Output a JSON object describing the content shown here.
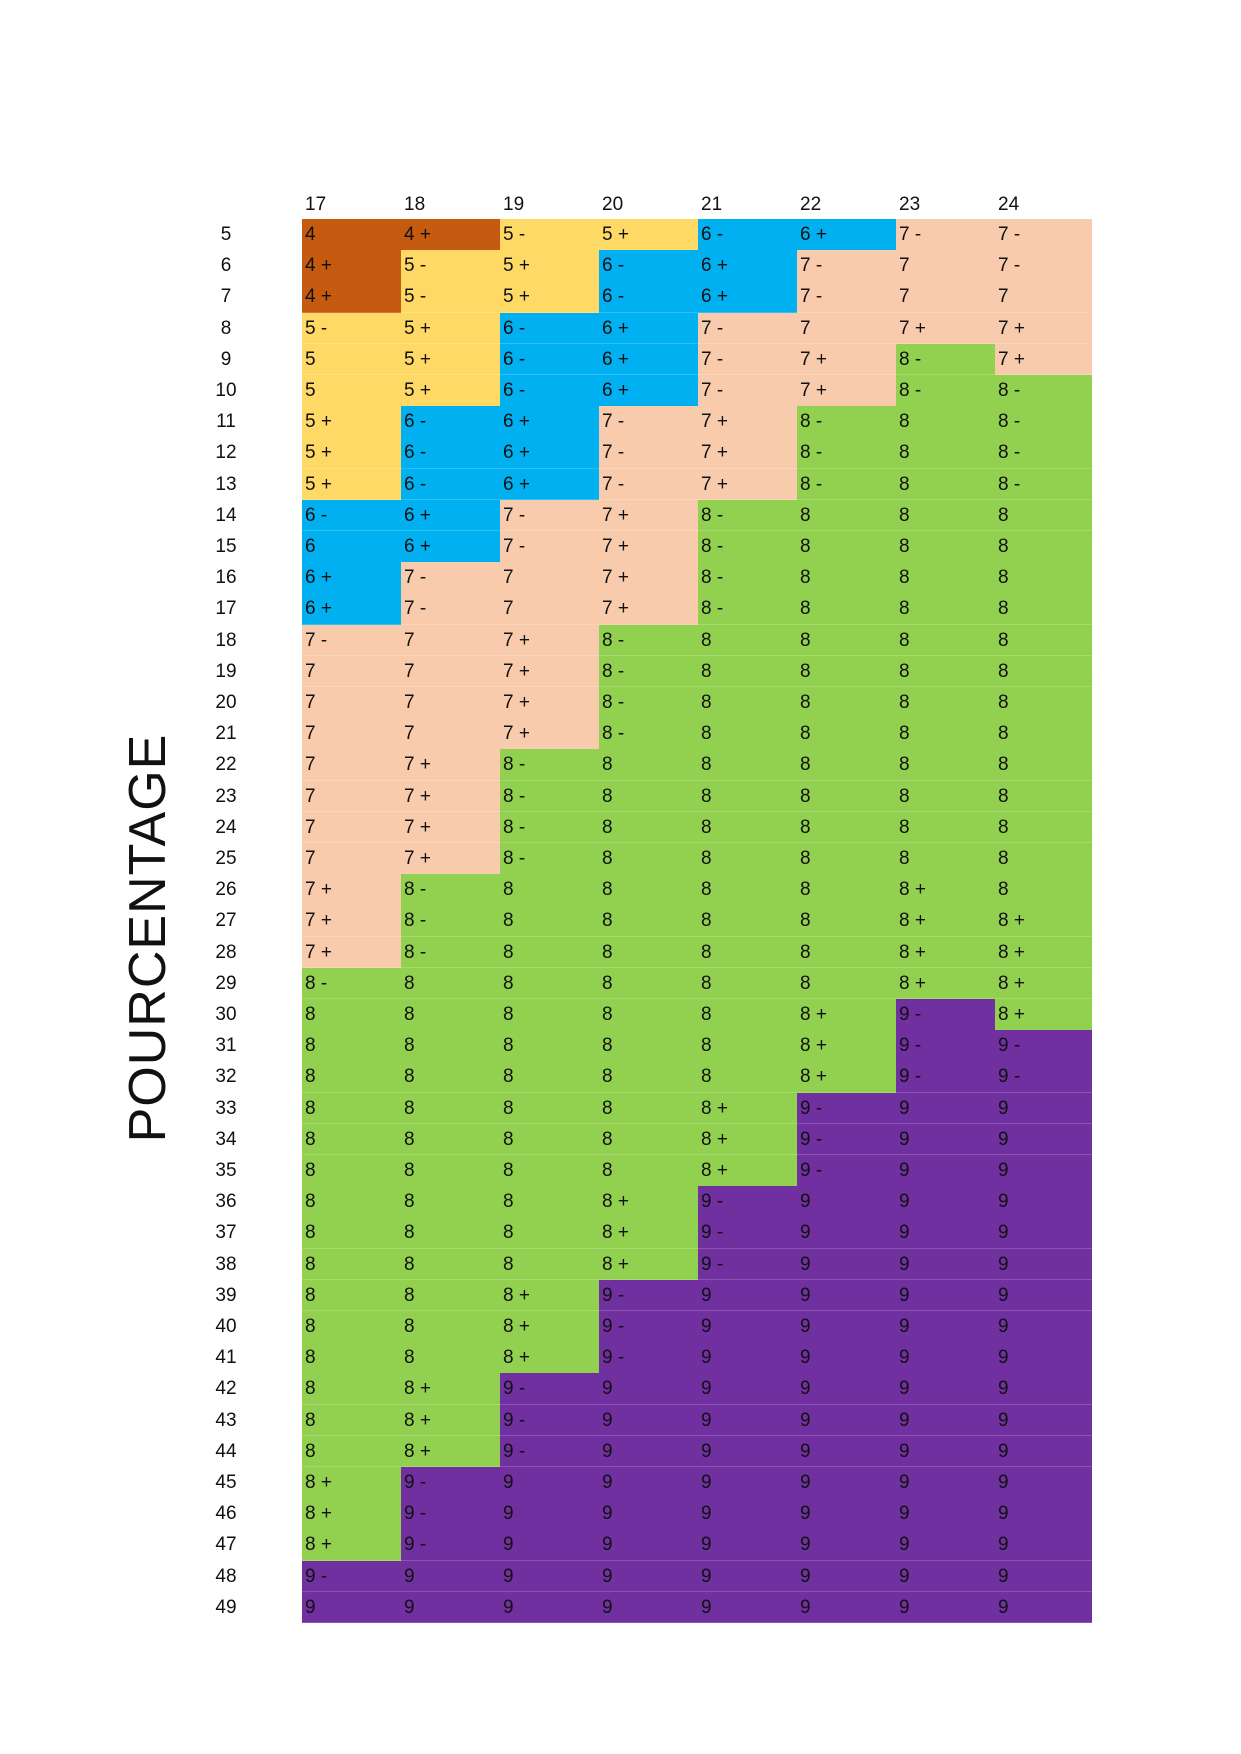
{
  "axis_title": "POURCENTAGE",
  "columns": [
    "17",
    "18",
    "19",
    "20",
    "21",
    "22",
    "23",
    "24"
  ],
  "colors": {
    "4": "#C55A11",
    "5": "#FFD966",
    "6": "#00B0F0",
    "7": "#F8CBAD",
    "8": "#92D050",
    "9": "#7030A0"
  },
  "rows": [
    {
      "label": "5",
      "cells": [
        "4",
        "4 +",
        "5 -",
        "5 +",
        "6 -",
        "6 +",
        "7 -",
        "7 -"
      ]
    },
    {
      "label": "6",
      "cells": [
        "4 +",
        "5 -",
        "5 +",
        "6 -",
        "6 +",
        "7 -",
        "7",
        "7 -"
      ]
    },
    {
      "label": "7",
      "cells": [
        "4 +",
        "5 -",
        "5 +",
        "6 -",
        "6 +",
        "7 -",
        "7",
        "7"
      ]
    },
    {
      "label": "8",
      "cells": [
        "5 -",
        "5 +",
        "6 -",
        "6 +",
        "7 -",
        "7",
        "7 +",
        "7 +"
      ]
    },
    {
      "label": "9",
      "cells": [
        "5",
        "5 +",
        "6 -",
        "6 +",
        "7 -",
        "7 +",
        "8 -",
        "7 +"
      ]
    },
    {
      "label": "10",
      "cells": [
        "5",
        "5 +",
        "6 -",
        "6 +",
        "7 -",
        "7 +",
        "8 -",
        "8 -"
      ]
    },
    {
      "label": "11",
      "cells": [
        "5 +",
        "6 -",
        "6 +",
        "7 -",
        "7 +",
        "8 -",
        "8",
        "8 -"
      ]
    },
    {
      "label": "12",
      "cells": [
        "5 +",
        "6 -",
        "6 +",
        "7 -",
        "7 +",
        "8 -",
        "8",
        "8 -"
      ]
    },
    {
      "label": "13",
      "cells": [
        "5 +",
        "6 -",
        "6 +",
        "7 -",
        "7 +",
        "8 -",
        "8",
        "8 -"
      ]
    },
    {
      "label": "14",
      "cells": [
        "6 -",
        "6 +",
        "7 -",
        "7 +",
        "8 -",
        "8",
        "8",
        "8"
      ]
    },
    {
      "label": "15",
      "cells": [
        "6",
        "6 +",
        "7 -",
        "7 +",
        "8 -",
        "8",
        "8",
        "8"
      ]
    },
    {
      "label": "16",
      "cells": [
        "6 +",
        "7 -",
        "7",
        "7 +",
        "8 -",
        "8",
        "8",
        "8"
      ]
    },
    {
      "label": "17",
      "cells": [
        "6 +",
        "7 -",
        "7",
        "7 +",
        "8 -",
        "8",
        "8",
        "8"
      ]
    },
    {
      "label": "18",
      "cells": [
        "7 -",
        "7",
        "7 +",
        "8 -",
        "8",
        "8",
        "8",
        "8"
      ]
    },
    {
      "label": "19",
      "cells": [
        "7",
        "7",
        "7 +",
        "8 -",
        "8",
        "8",
        "8",
        "8"
      ]
    },
    {
      "label": "20",
      "cells": [
        "7",
        "7",
        "7 +",
        "8 -",
        "8",
        "8",
        "8",
        "8"
      ]
    },
    {
      "label": "21",
      "cells": [
        "7",
        "7",
        "7 +",
        "8 -",
        "8",
        "8",
        "8",
        "8"
      ]
    },
    {
      "label": "22",
      "cells": [
        "7",
        "7 +",
        "8 -",
        "8",
        "8",
        "8",
        "8",
        "8"
      ]
    },
    {
      "label": "23",
      "cells": [
        "7",
        "7 +",
        "8 -",
        "8",
        "8",
        "8",
        "8",
        "8"
      ]
    },
    {
      "label": "24",
      "cells": [
        "7",
        "7 +",
        "8 -",
        "8",
        "8",
        "8",
        "8",
        "8"
      ]
    },
    {
      "label": "25",
      "cells": [
        "7",
        "7 +",
        "8 -",
        "8",
        "8",
        "8",
        "8",
        "8"
      ]
    },
    {
      "label": "26",
      "cells": [
        "7 +",
        "8 -",
        "8",
        "8",
        "8",
        "8",
        "8 +",
        "8"
      ]
    },
    {
      "label": "27",
      "cells": [
        "7 +",
        "8 -",
        "8",
        "8",
        "8",
        "8",
        "8 +",
        "8 +"
      ]
    },
    {
      "label": "28",
      "cells": [
        "7 +",
        "8 -",
        "8",
        "8",
        "8",
        "8",
        "8 +",
        "8 +"
      ]
    },
    {
      "label": "29",
      "cells": [
        "8 -",
        "8",
        "8",
        "8",
        "8",
        "8",
        "8 +",
        "8 +"
      ]
    },
    {
      "label": "30",
      "cells": [
        "8",
        "8",
        "8",
        "8",
        "8",
        "8 +",
        "9 -",
        "8 +"
      ]
    },
    {
      "label": "31",
      "cells": [
        "8",
        "8",
        "8",
        "8",
        "8",
        "8 +",
        "9 -",
        "9 -"
      ]
    },
    {
      "label": "32",
      "cells": [
        "8",
        "8",
        "8",
        "8",
        "8",
        "8 +",
        "9 -",
        "9 -"
      ]
    },
    {
      "label": "33",
      "cells": [
        "8",
        "8",
        "8",
        "8",
        "8 +",
        "9 -",
        "9",
        "9"
      ]
    },
    {
      "label": "34",
      "cells": [
        "8",
        "8",
        "8",
        "8",
        "8 +",
        "9 -",
        "9",
        "9"
      ]
    },
    {
      "label": "35",
      "cells": [
        "8",
        "8",
        "8",
        "8",
        "8 +",
        "9 -",
        "9",
        "9"
      ]
    },
    {
      "label": "36",
      "cells": [
        "8",
        "8",
        "8",
        "8 +",
        "9 -",
        "9",
        "9",
        "9"
      ]
    },
    {
      "label": "37",
      "cells": [
        "8",
        "8",
        "8",
        "8 +",
        "9 -",
        "9",
        "9",
        "9"
      ]
    },
    {
      "label": "38",
      "cells": [
        "8",
        "8",
        "8",
        "8 +",
        "9 -",
        "9",
        "9",
        "9"
      ]
    },
    {
      "label": "39",
      "cells": [
        "8",
        "8",
        "8 +",
        "9 -",
        "9",
        "9",
        "9",
        "9"
      ]
    },
    {
      "label": "40",
      "cells": [
        "8",
        "8",
        "8 +",
        "9 -",
        "9",
        "9",
        "9",
        "9"
      ]
    },
    {
      "label": "41",
      "cells": [
        "8",
        "8",
        "8 +",
        "9 -",
        "9",
        "9",
        "9",
        "9"
      ]
    },
    {
      "label": "42",
      "cells": [
        "8",
        "8 +",
        "9 -",
        "9",
        "9",
        "9",
        "9",
        "9"
      ]
    },
    {
      "label": "43",
      "cells": [
        "8",
        "8 +",
        "9 -",
        "9",
        "9",
        "9",
        "9",
        "9"
      ]
    },
    {
      "label": "44",
      "cells": [
        "8",
        "8 +",
        "9 -",
        "9",
        "9",
        "9",
        "9",
        "9"
      ]
    },
    {
      "label": "45",
      "cells": [
        "8 +",
        "9 -",
        "9",
        "9",
        "9",
        "9",
        "9",
        "9"
      ]
    },
    {
      "label": "46",
      "cells": [
        "8 +",
        "9 -",
        "9",
        "9",
        "9",
        "9",
        "9",
        "9"
      ]
    },
    {
      "label": "47",
      "cells": [
        "8 +",
        "9 -",
        "9",
        "9",
        "9",
        "9",
        "9",
        "9"
      ]
    },
    {
      "label": "48",
      "cells": [
        "9 -",
        "9",
        "9",
        "9",
        "9",
        "9",
        "9",
        "9"
      ]
    },
    {
      "label": "49",
      "cells": [
        "9",
        "9",
        "9",
        "9",
        "9",
        "9",
        "9",
        "9"
      ]
    }
  ]
}
